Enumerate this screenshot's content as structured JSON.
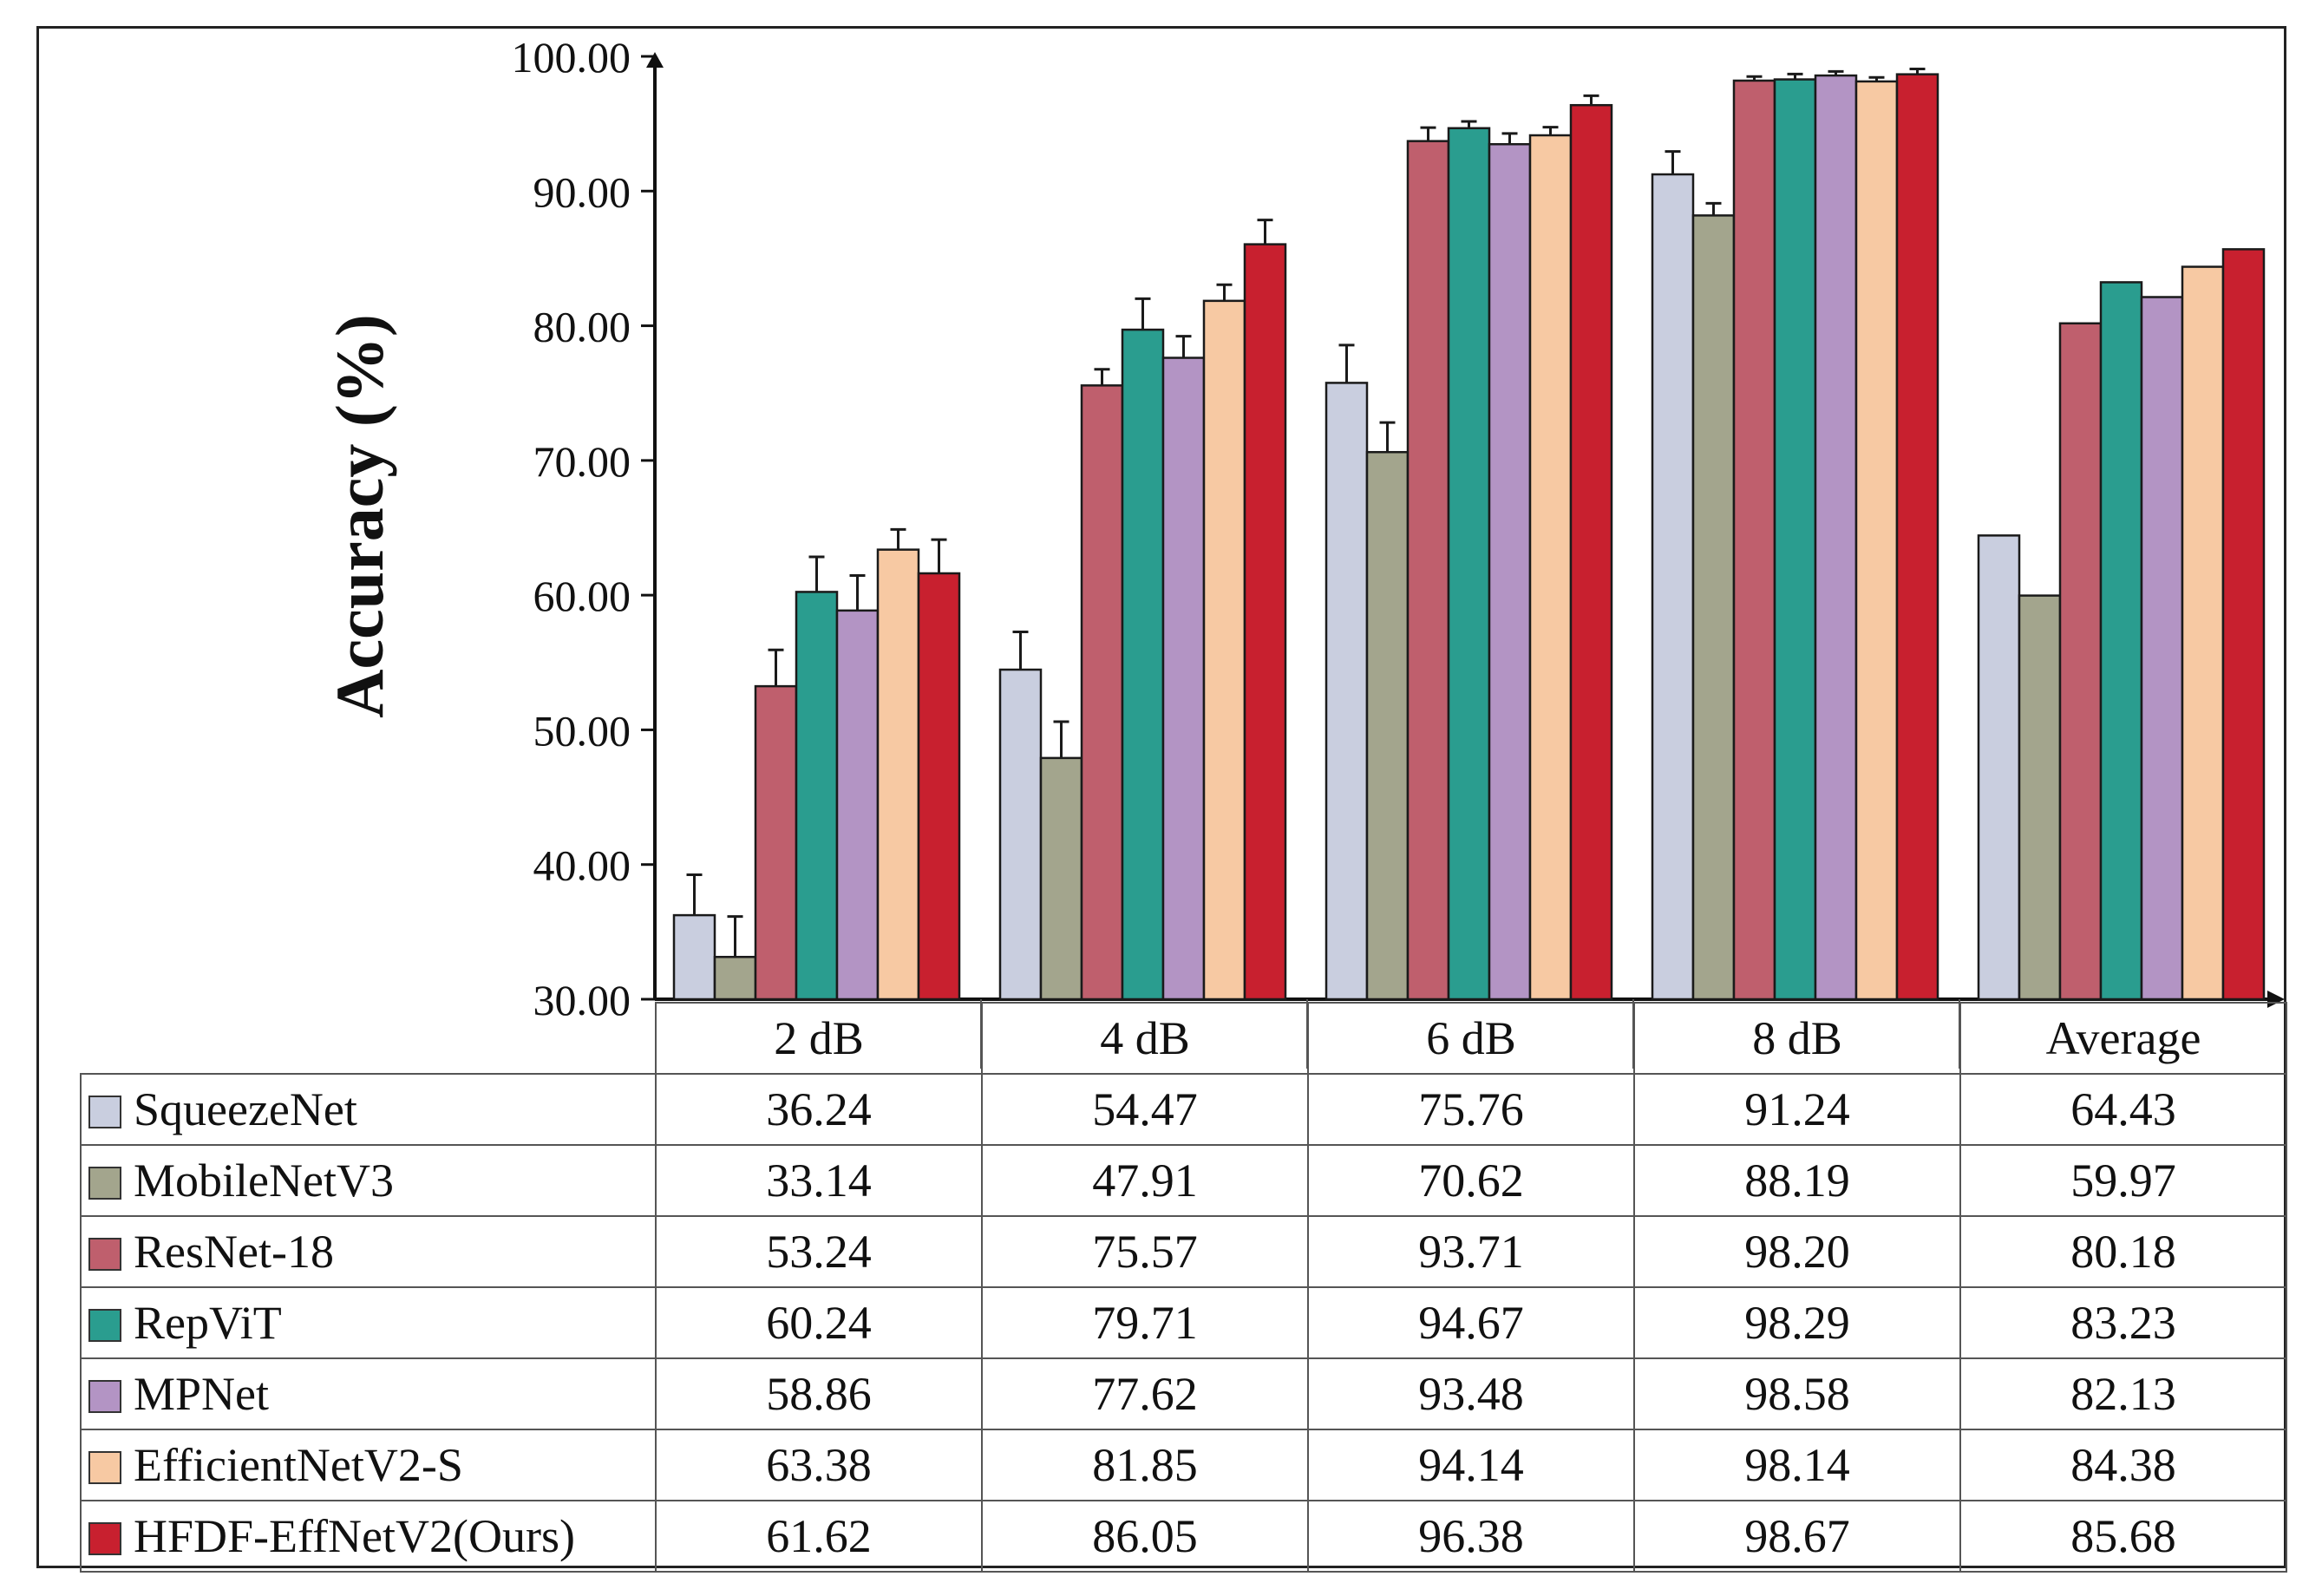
{
  "chart_data": {
    "type": "bar",
    "title": "",
    "ylabel": "Accuracy (%)",
    "xlabel": "",
    "ylim": [
      30,
      100
    ],
    "yticks": [
      "30.00",
      "40.00",
      "50.00",
      "60.00",
      "70.00",
      "80.00",
      "90.00",
      "100.00"
    ],
    "categories": [
      "2 dB",
      "4 dB",
      "6 dB",
      "8 dB",
      "Average"
    ],
    "legend": "table-left",
    "error_bars": true,
    "series": [
      {
        "name": "SqueezeNet",
        "color": "#c9cedf",
        "values": [
          36.24,
          54.47,
          75.76,
          91.24,
          64.43
        ],
        "value_labels": [
          "36.24",
          "54.47",
          "75.76",
          "91.24",
          "64.43"
        ],
        "errors": [
          3.0,
          2.8,
          2.8,
          1.7,
          0
        ]
      },
      {
        "name": "MobileNetV3",
        "color": "#a3a58d",
        "values": [
          33.14,
          47.91,
          70.62,
          88.19,
          59.97
        ],
        "value_labels": [
          "33.14",
          "47.91",
          "70.62",
          "88.19",
          "59.97"
        ],
        "errors": [
          3.0,
          2.7,
          2.2,
          0.9,
          0
        ]
      },
      {
        "name": "ResNet-18",
        "color": "#bf5f6d",
        "values": [
          53.24,
          75.57,
          93.71,
          98.2,
          80.18
        ],
        "value_labels": [
          "53.24",
          "75.57",
          "93.71",
          "98.20",
          "80.18"
        ],
        "errors": [
          2.7,
          1.2,
          1.0,
          0.3,
          0
        ]
      },
      {
        "name": "RepViT",
        "color": "#2a9d8f",
        "values": [
          60.24,
          79.71,
          94.67,
          98.29,
          83.23
        ],
        "value_labels": [
          "60.24",
          "79.71",
          "94.67",
          "98.29",
          "83.23"
        ],
        "errors": [
          2.6,
          2.3,
          0.5,
          0.4,
          0
        ]
      },
      {
        "name": "MPNet",
        "color": "#b394c4",
        "values": [
          58.86,
          77.62,
          93.48,
          98.58,
          82.13
        ],
        "value_labels": [
          "58.86",
          "77.62",
          "93.48",
          "98.58",
          "82.13"
        ],
        "errors": [
          2.6,
          1.6,
          0.8,
          0.3,
          0
        ]
      },
      {
        "name": "EfficientNetV2-S",
        "color": "#f7c9a3",
        "values": [
          63.38,
          81.85,
          94.14,
          98.14,
          84.38
        ],
        "value_labels": [
          "63.38",
          "81.85",
          "94.14",
          "98.14",
          "84.38"
        ],
        "errors": [
          1.5,
          1.2,
          0.6,
          0.3,
          0
        ]
      },
      {
        "name": "HFDF-EffNetV2(Ours)",
        "color": "#c8202f",
        "values": [
          61.62,
          86.05,
          96.38,
          98.67,
          85.68
        ],
        "value_labels": [
          "61.62",
          "86.05",
          "96.38",
          "98.67",
          "85.68"
        ],
        "errors": [
          2.5,
          1.8,
          0.7,
          0.4,
          0
        ]
      }
    ]
  }
}
